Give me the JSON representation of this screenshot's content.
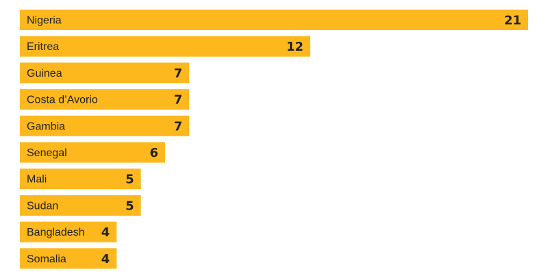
{
  "colors": {
    "bar": "#FDB81E",
    "text": "#222222"
  },
  "chart_data": {
    "type": "bar",
    "orientation": "horizontal",
    "categories": [
      "Nigeria",
      "Eritrea",
      "Guinea",
      "Costa d’Avorio",
      "Gambia",
      "Senegal",
      "Mali",
      "Sudan",
      "Bangladesh",
      "Somalia"
    ],
    "values": [
      21,
      12,
      7,
      7,
      7,
      6,
      5,
      5,
      4,
      4
    ],
    "title": "",
    "xlabel": "",
    "ylabel": "",
    "grid": false,
    "legend": "none"
  }
}
